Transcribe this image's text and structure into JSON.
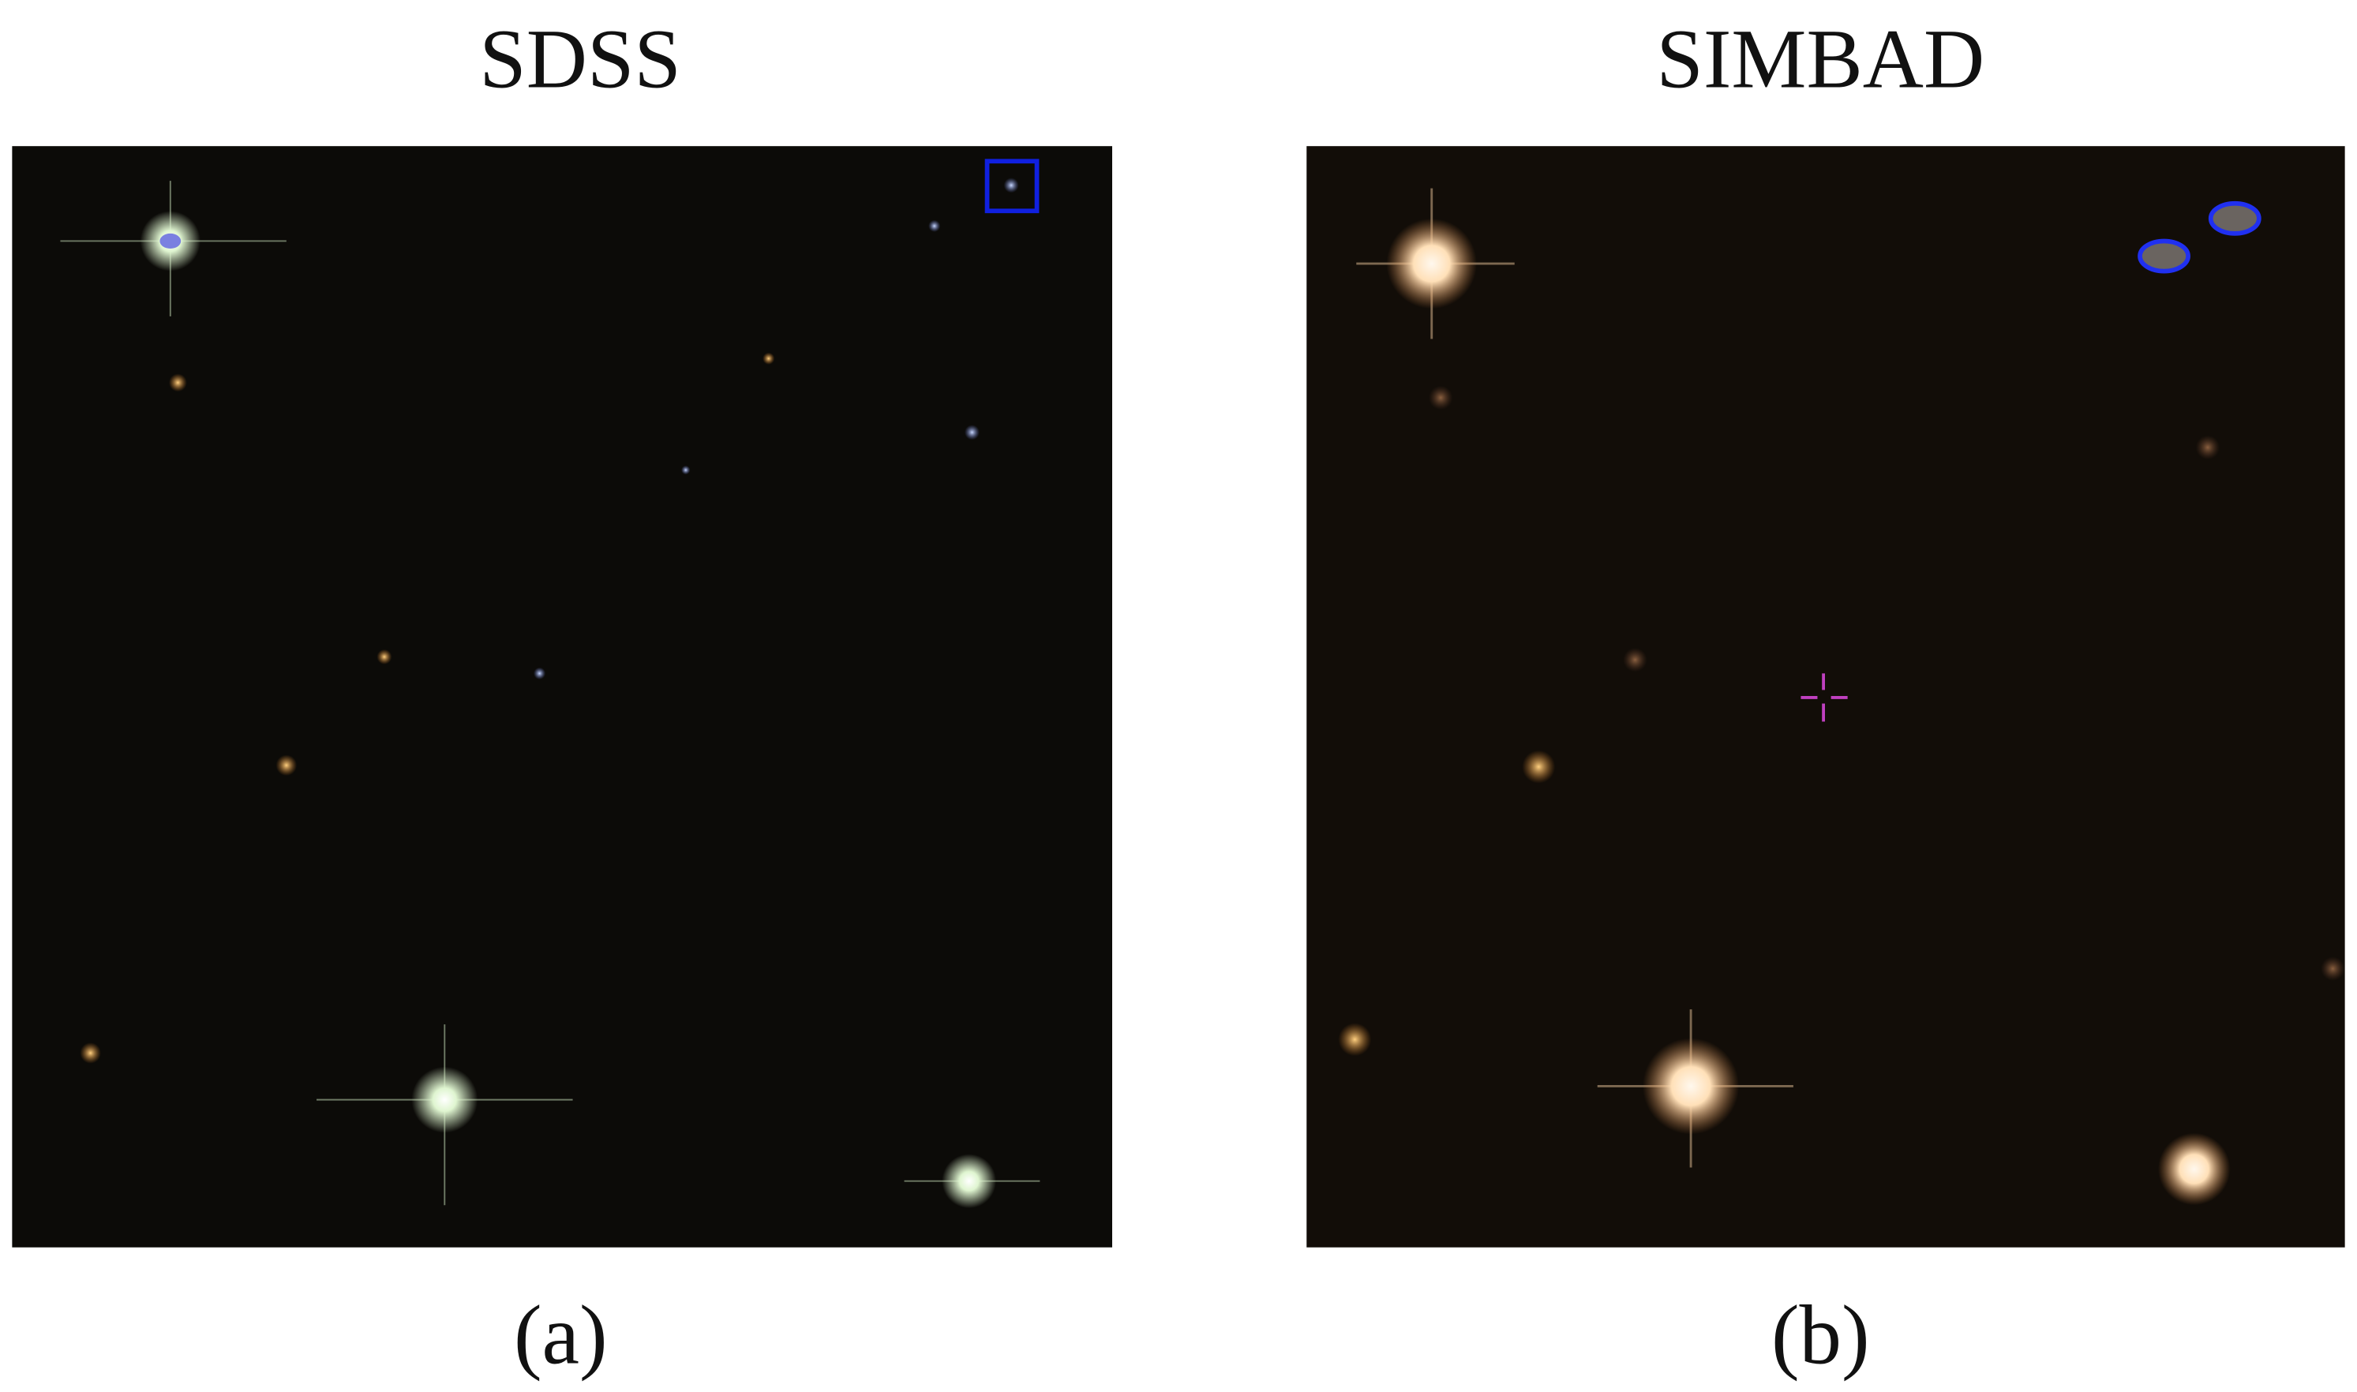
{
  "panels": [
    {
      "title": "SDSS",
      "caption": "(a)"
    },
    {
      "title": "SIMBAD",
      "caption": "(b)"
    }
  ]
}
